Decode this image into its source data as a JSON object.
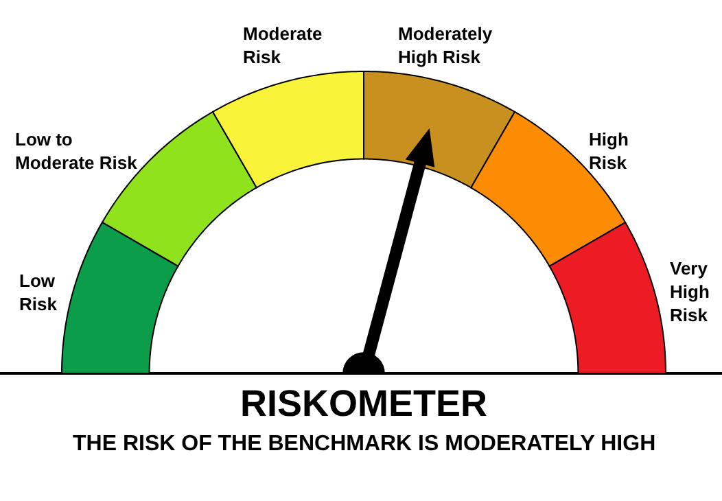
{
  "chart_data": {
    "type": "donut",
    "title": "RISKOMETER",
    "subtitle": "THE RISK OF THE BENCHMARK IS MODERATELY HIGH",
    "categories": [
      "Low\nRisk",
      "Low to\nModerate Risk",
      "Moderate\nRisk",
      "Moderately\nHigh Risk",
      "High\nRisk",
      "Very\nHigh\nRisk"
    ],
    "values": [
      16.67,
      16.67,
      16.66,
      16.67,
      16.67,
      16.66
    ],
    "colors": [
      "#0b9d4a",
      "#8fe21c",
      "#f9f43a",
      "#c8911f",
      "#fc8c03",
      "#ed1c24"
    ],
    "needle": "Moderately\nHigh Risk"
  }
}
